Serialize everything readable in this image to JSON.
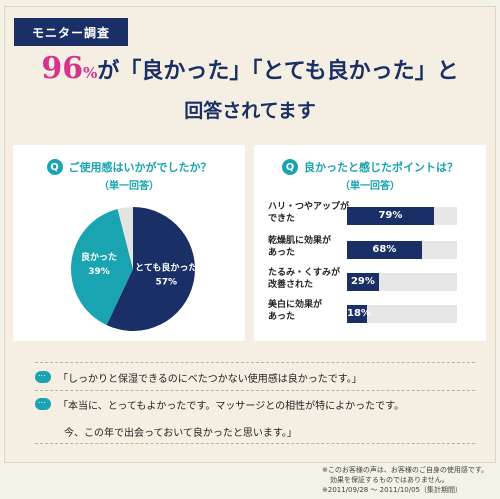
{
  "badge": "モニター調査",
  "headline": {
    "pct_num": "96",
    "pct_sign": "%",
    "rest": "が「良かった」「とても良かった」と",
    "line2": "回答されてます"
  },
  "left_card": {
    "q_icon": "Q",
    "question": "ご使用感はいかがでしたか？",
    "sub": "（単一回答）"
  },
  "right_card": {
    "q_icon": "Q",
    "question": "良かったと感じたポイントは？",
    "sub": "（単一回答）"
  },
  "chart_data": [
    {
      "type": "pie",
      "title": "ご使用感はいかがでしたか？",
      "slices": [
        {
          "label": "とても良かった",
          "value": 57,
          "display": "57%",
          "color": "#1a2f66"
        },
        {
          "label": "良かった",
          "value": 39,
          "display": "39%",
          "color": "#1aa3b0"
        },
        {
          "label": "",
          "value": 4,
          "display": "",
          "color": "#e3e3e3"
        }
      ]
    },
    {
      "type": "bar",
      "title": "良かったと感じたポイントは？",
      "categories": [
        "ハリ・つやアップが できた",
        "乾燥肌に効果が あった",
        "たるみ・くすみが 改善された",
        "美白に効果が あった"
      ],
      "values": [
        79,
        68,
        29,
        18
      ],
      "labels": [
        "79%",
        "68%",
        "29%",
        "18%"
      ],
      "ylim": [
        0,
        100
      ]
    }
  ],
  "bars": [
    {
      "line1": "ハリ・つやアップが",
      "line2": "できた",
      "label": "79%"
    },
    {
      "line1": "乾燥肌に効果が",
      "line2": "あった",
      "label": "68%"
    },
    {
      "line1": "たるみ・くすみが",
      "line2": "改善された",
      "label": "29%"
    },
    {
      "line1": "美白に効果が",
      "line2": "あった",
      "label": "18%"
    }
  ],
  "comments": [
    "「しっかりと保湿できるのにべたつかない使用感は良かったです。」",
    "「本当に、とってもよかったです。マッサージとの相性が特によかったです。",
    "今、この年で出会っておいて良かったと思います。」"
  ],
  "footnote": {
    "line1": "※このお客様の声は、お客様のご自身の使用感です。",
    "line2": "効果を保証するものではありません。",
    "line3": "※2011/09/28 〜 2011/10/05（集計期間）"
  },
  "colors": {
    "navy": "#1a2f66",
    "teal": "#1aa3b0",
    "pink": "#d6338f",
    "bg": "#f4efe2"
  }
}
